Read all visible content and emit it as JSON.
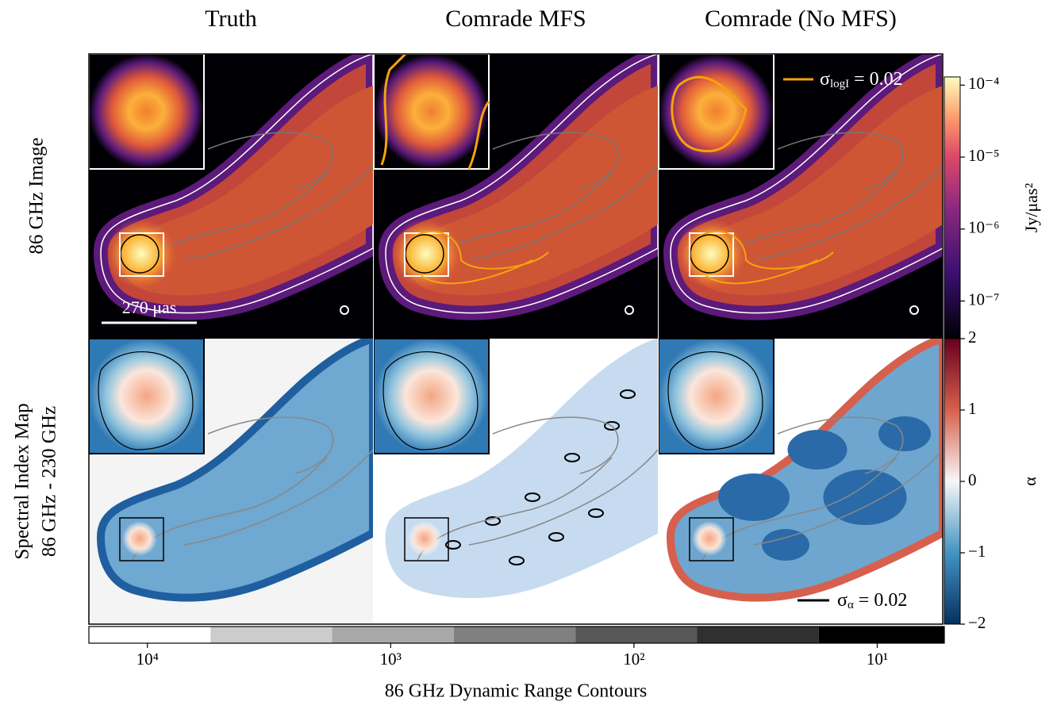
{
  "column_titles": [
    "Truth",
    "Comrade MFS",
    "Comrade (No MFS)"
  ],
  "row_labels": [
    [
      "86 GHz Image"
    ],
    [
      "Spectral Index Map",
      "86 GHz - 230 GHz"
    ]
  ],
  "scale_bar": "270 μas",
  "legends": {
    "image": {
      "symbol": "σ",
      "subscript": "logI",
      "text": " = 0.02",
      "color": "#f5a30c"
    },
    "alpha": {
      "symbol": "σ",
      "subscript": "α",
      "text": " = 0.02",
      "color": "#000000"
    }
  },
  "colorbars": {
    "intensity": {
      "label": "Jy/μas²",
      "scale": "log",
      "ylim": [
        3e-08,
        0.00013
      ],
      "yticks": [
        {
          "value": 0.0001,
          "label": "10⁻⁴"
        },
        {
          "value": 1e-05,
          "label": "10⁻⁵"
        },
        {
          "value": 1e-06,
          "label": "10⁻⁶"
        },
        {
          "value": 1e-07,
          "label": "10⁻⁷"
        }
      ]
    },
    "alpha": {
      "label": "α",
      "scale": "linear",
      "ylim": [
        -2,
        2
      ],
      "yticks": [
        {
          "value": -2,
          "label": "−2"
        },
        {
          "value": -1,
          "label": "−1"
        },
        0,
        1,
        2
      ]
    },
    "dynamic_range": {
      "label": "86 GHz Dynamic Range Contours",
      "scale": "log",
      "xlim": [
        17400,
        5.3
      ],
      "levels": [
        17400,
        5500,
        1740,
        550,
        174,
        55,
        17.4,
        5.3
      ],
      "colors": [
        "#ffffff",
        "#cccccc",
        "#a8a8a8",
        "#808080",
        "#585858",
        "#303030",
        "#000000"
      ],
      "xticks": [
        {
          "value": 10000,
          "label": "10⁴"
        },
        {
          "value": 1000,
          "label": "10³"
        },
        {
          "value": 100,
          "label": "10²"
        },
        {
          "value": 10,
          "label": "10¹"
        }
      ]
    }
  }
}
